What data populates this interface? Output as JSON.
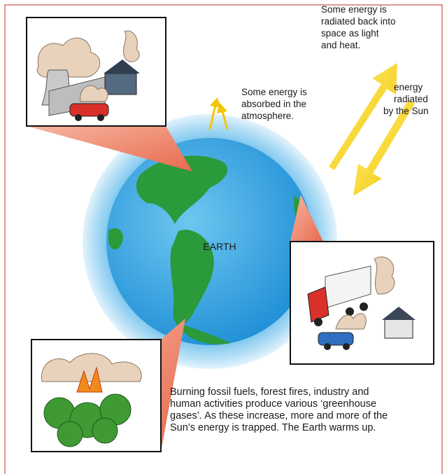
{
  "labels": {
    "radiated_back": [
      "Some energy is",
      "radiated back into",
      "space as light",
      "and heat."
    ],
    "absorbed": [
      "Some energy is",
      "absorbed in the",
      "atmosphere."
    ],
    "sun_energy": [
      "energy",
      "radiated",
      "by the Sun"
    ],
    "earth": "EARTH",
    "caption": [
      "Burning fossil fuels, forest fires, industry and",
      "human activities produce various ‘greenhouse",
      "gases’. As these increase, more and more of the",
      "Sun’s energy is trapped. The Earth warms up."
    ]
  }
}
